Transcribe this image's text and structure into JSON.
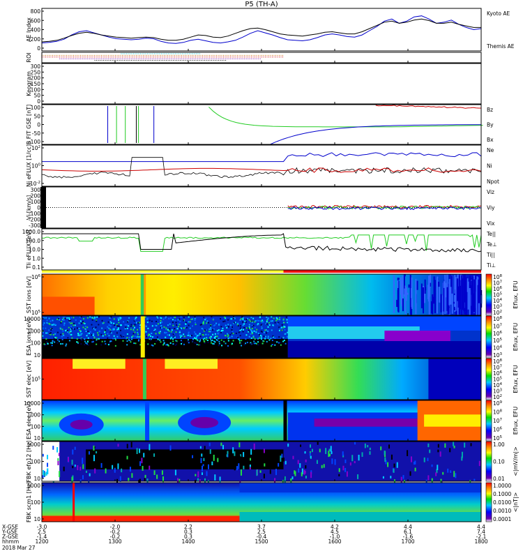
{
  "title": "P5 (TH-A)",
  "chart_data": {
    "type": "line",
    "x_time_ticks": [
      "1200",
      "1300",
      "1400",
      "1500",
      "1600",
      "1700",
      "1800"
    ],
    "date": "2018 Mar 27",
    "ephemeris": {
      "row_labels": [
        "X-GSE",
        "Y-GSE",
        "Z-GSE",
        "hhmm"
      ],
      "values": [
        [
          "-3.0",
          "2.5",
          "-1.4"
        ],
        [
          "-2.0",
          "-0.2",
          "-0.2"
        ],
        [
          "2.2",
          "0.3",
          "0.3"
        ],
        [
          "3.7",
          "2.5",
          "-0.4"
        ],
        [
          "4.2",
          "4.5",
          "-1.0"
        ],
        [
          "4.4",
          "6.1",
          "-1.6"
        ],
        [
          "4.4",
          "7.4",
          "-2.1"
        ]
      ]
    },
    "panels": [
      {
        "name": "ae",
        "ylabel": "AE Index",
        "yticks": [
          "800",
          "600",
          "400",
          "200",
          "0"
        ],
        "ylim": [
          0,
          800
        ],
        "legend": [
          {
            "text": "Kyoto AE",
            "color": "#0000cc"
          },
          {
            "text": "Themis AE",
            "color": "#000000"
          }
        ],
        "series": [
          {
            "color": "#0000cc",
            "values": [
              150,
              160,
              180,
              220,
              300,
              360,
              380,
              340,
              300,
              260,
              230,
              220,
              210,
              220,
              240,
              230,
              180,
              150,
              140,
              160,
              200,
              220,
              190,
              160,
              150,
              170,
              200,
              260,
              330,
              380,
              340,
              300,
              250,
              210,
              200,
              190,
              210,
              250,
              300,
              320,
              300,
              270,
              260,
              300,
              380,
              460,
              560,
              600,
              520,
              560,
              640,
              660,
              600,
              520,
              540,
              580,
              500,
              440,
              400,
              420
            ]
          },
          {
            "color": "#000000",
            "values": [
              170,
              180,
              200,
              240,
              290,
              330,
              350,
              330,
              300,
              280,
              260,
              250,
              240,
              250,
              260,
              250,
              220,
              200,
              200,
              220,
              260,
              300,
              290,
              260,
              250,
              280,
              330,
              380,
              420,
              430,
              400,
              360,
              320,
              300,
              290,
              280,
              300,
              320,
              350,
              360,
              340,
              320,
              320,
              360,
              420,
              480,
              540,
              560,
              520,
              540,
              580,
              600,
              570,
              520,
              520,
              540,
              500,
              470,
              440,
              440
            ]
          }
        ]
      },
      {
        "name": "roi",
        "ylabel": "ROI",
        "bars": [
          {
            "color": "#00ccdd",
            "x0": 0.18,
            "x1": 0.36
          },
          {
            "color": "#cc6600",
            "x0": 0.0,
            "x1": 0.55
          },
          {
            "color": "#cc0000",
            "x0": 0.0,
            "x1": 0.55
          },
          {
            "color": "#7700aa",
            "x0": 0.04,
            "x1": 0.5
          },
          {
            "color": "#000000",
            "x0": 0.12,
            "x1": 0.42
          }
        ]
      },
      {
        "name": "keogram",
        "ylabel": "Keogram",
        "yticks": [
          "300",
          "250",
          "200",
          "150",
          "100",
          "50",
          "0"
        ],
        "ylim": [
          0,
          300
        ]
      },
      {
        "name": "bfit",
        "ylabel": "B FIT GSE [nT]",
        "yticks": [
          "100",
          "50",
          "0",
          "-50",
          "-100"
        ],
        "ylim": [
          -100,
          100
        ],
        "legend": [
          {
            "text": "Bz",
            "color": "#cc0000"
          },
          {
            "text": "By",
            "color": "#00aa00"
          },
          {
            "text": "Bx",
            "color": "#0000cc"
          }
        ]
      },
      {
        "name": "ni",
        "ylabel": "Ni eFLUX [1/cc]",
        "yticks": [
          "10^2",
          "10^0",
          "10^-2"
        ],
        "legend": [
          {
            "text": "Ne",
            "color": "#cc0000"
          },
          {
            "text": "Ni",
            "color": "#000000"
          },
          {
            "text": "Npot",
            "color": "#0000cc"
          }
        ]
      },
      {
        "name": "vi",
        "ylabel": "Vi [km/s]",
        "yticks": [
          "300",
          "200",
          "100",
          "0",
          "-100",
          "-200",
          "-300"
        ],
        "ylim": [
          -300,
          300
        ],
        "legend": [
          {
            "text": "Viz",
            "color": "#cc0000"
          },
          {
            "text": "Viy",
            "color": "#00aa00"
          },
          {
            "text": "Vix",
            "color": "#0000cc"
          }
        ]
      },
      {
        "name": "ti",
        "ylabel": "TIi eFLUX [eV]",
        "yticks": [
          "1000.0",
          "100.0",
          "10.0",
          "1.0",
          "0.1"
        ],
        "legend": [
          {
            "text": "Te||",
            "color": "#000000"
          },
          {
            "text": "Te⊥",
            "color": "#cc0000"
          },
          {
            "text": "Ti||",
            "color": "#00aa00"
          },
          {
            "text": "Ti⊥",
            "color": "#0000cc"
          }
        ]
      },
      {
        "name": "sst_ion",
        "ylabel": "SST ions [eV]",
        "yticks": [
          "10^6",
          "10^5"
        ],
        "cbar_label": "Eflux, EFU",
        "cbar_ticks": [
          "10^8",
          "10^7",
          "10^6",
          "10^5",
          "10^4",
          "10^3",
          "10^2"
        ]
      },
      {
        "name": "esa_ion",
        "ylabel": "ESA ions [eV]",
        "yticks": [
          "10000",
          "1000",
          "100",
          "10"
        ],
        "cbar_label": "Eflux, EFU",
        "cbar_ticks": [
          "10^8",
          "10^7",
          "10^6",
          "10^5",
          "10^4",
          "10^3"
        ]
      },
      {
        "name": "sst_elec",
        "ylabel": "SST elec [eV]",
        "yticks": [
          "10^5"
        ],
        "cbar_label": "Eflux, EFU",
        "cbar_ticks": [
          "10^8",
          "10^7",
          "10^6",
          "10^5",
          "10^4",
          "10^3",
          "10^2"
        ]
      },
      {
        "name": "esa_elec",
        "ylabel": "ESA elec [eV]",
        "yticks": [
          "10000",
          "1000",
          "100",
          "10"
        ],
        "cbar_label": "Eflux, EFU",
        "cbar_ticks": [
          "10^9",
          "10^8",
          "10^7",
          "10^6",
          "10^5"
        ]
      },
      {
        "name": "fbk_e12",
        "ylabel": "FBK efp12 [Hz]",
        "yticks": [
          "1000",
          "100",
          "10"
        ],
        "cbar_label": "<|mV/m|>",
        "cbar_ticks": [
          "1.00",
          "0.10",
          "0.01"
        ]
      },
      {
        "name": "fbk_b",
        "ylabel": "FBK scm1 [Hz]",
        "yticks": [
          "1000",
          "100",
          "10"
        ],
        "cbar_label": "<|nT|>",
        "cbar_ticks": [
          "1.0000",
          "0.1000",
          "0.0100",
          "0.0010",
          "0.0001"
        ]
      }
    ]
  }
}
